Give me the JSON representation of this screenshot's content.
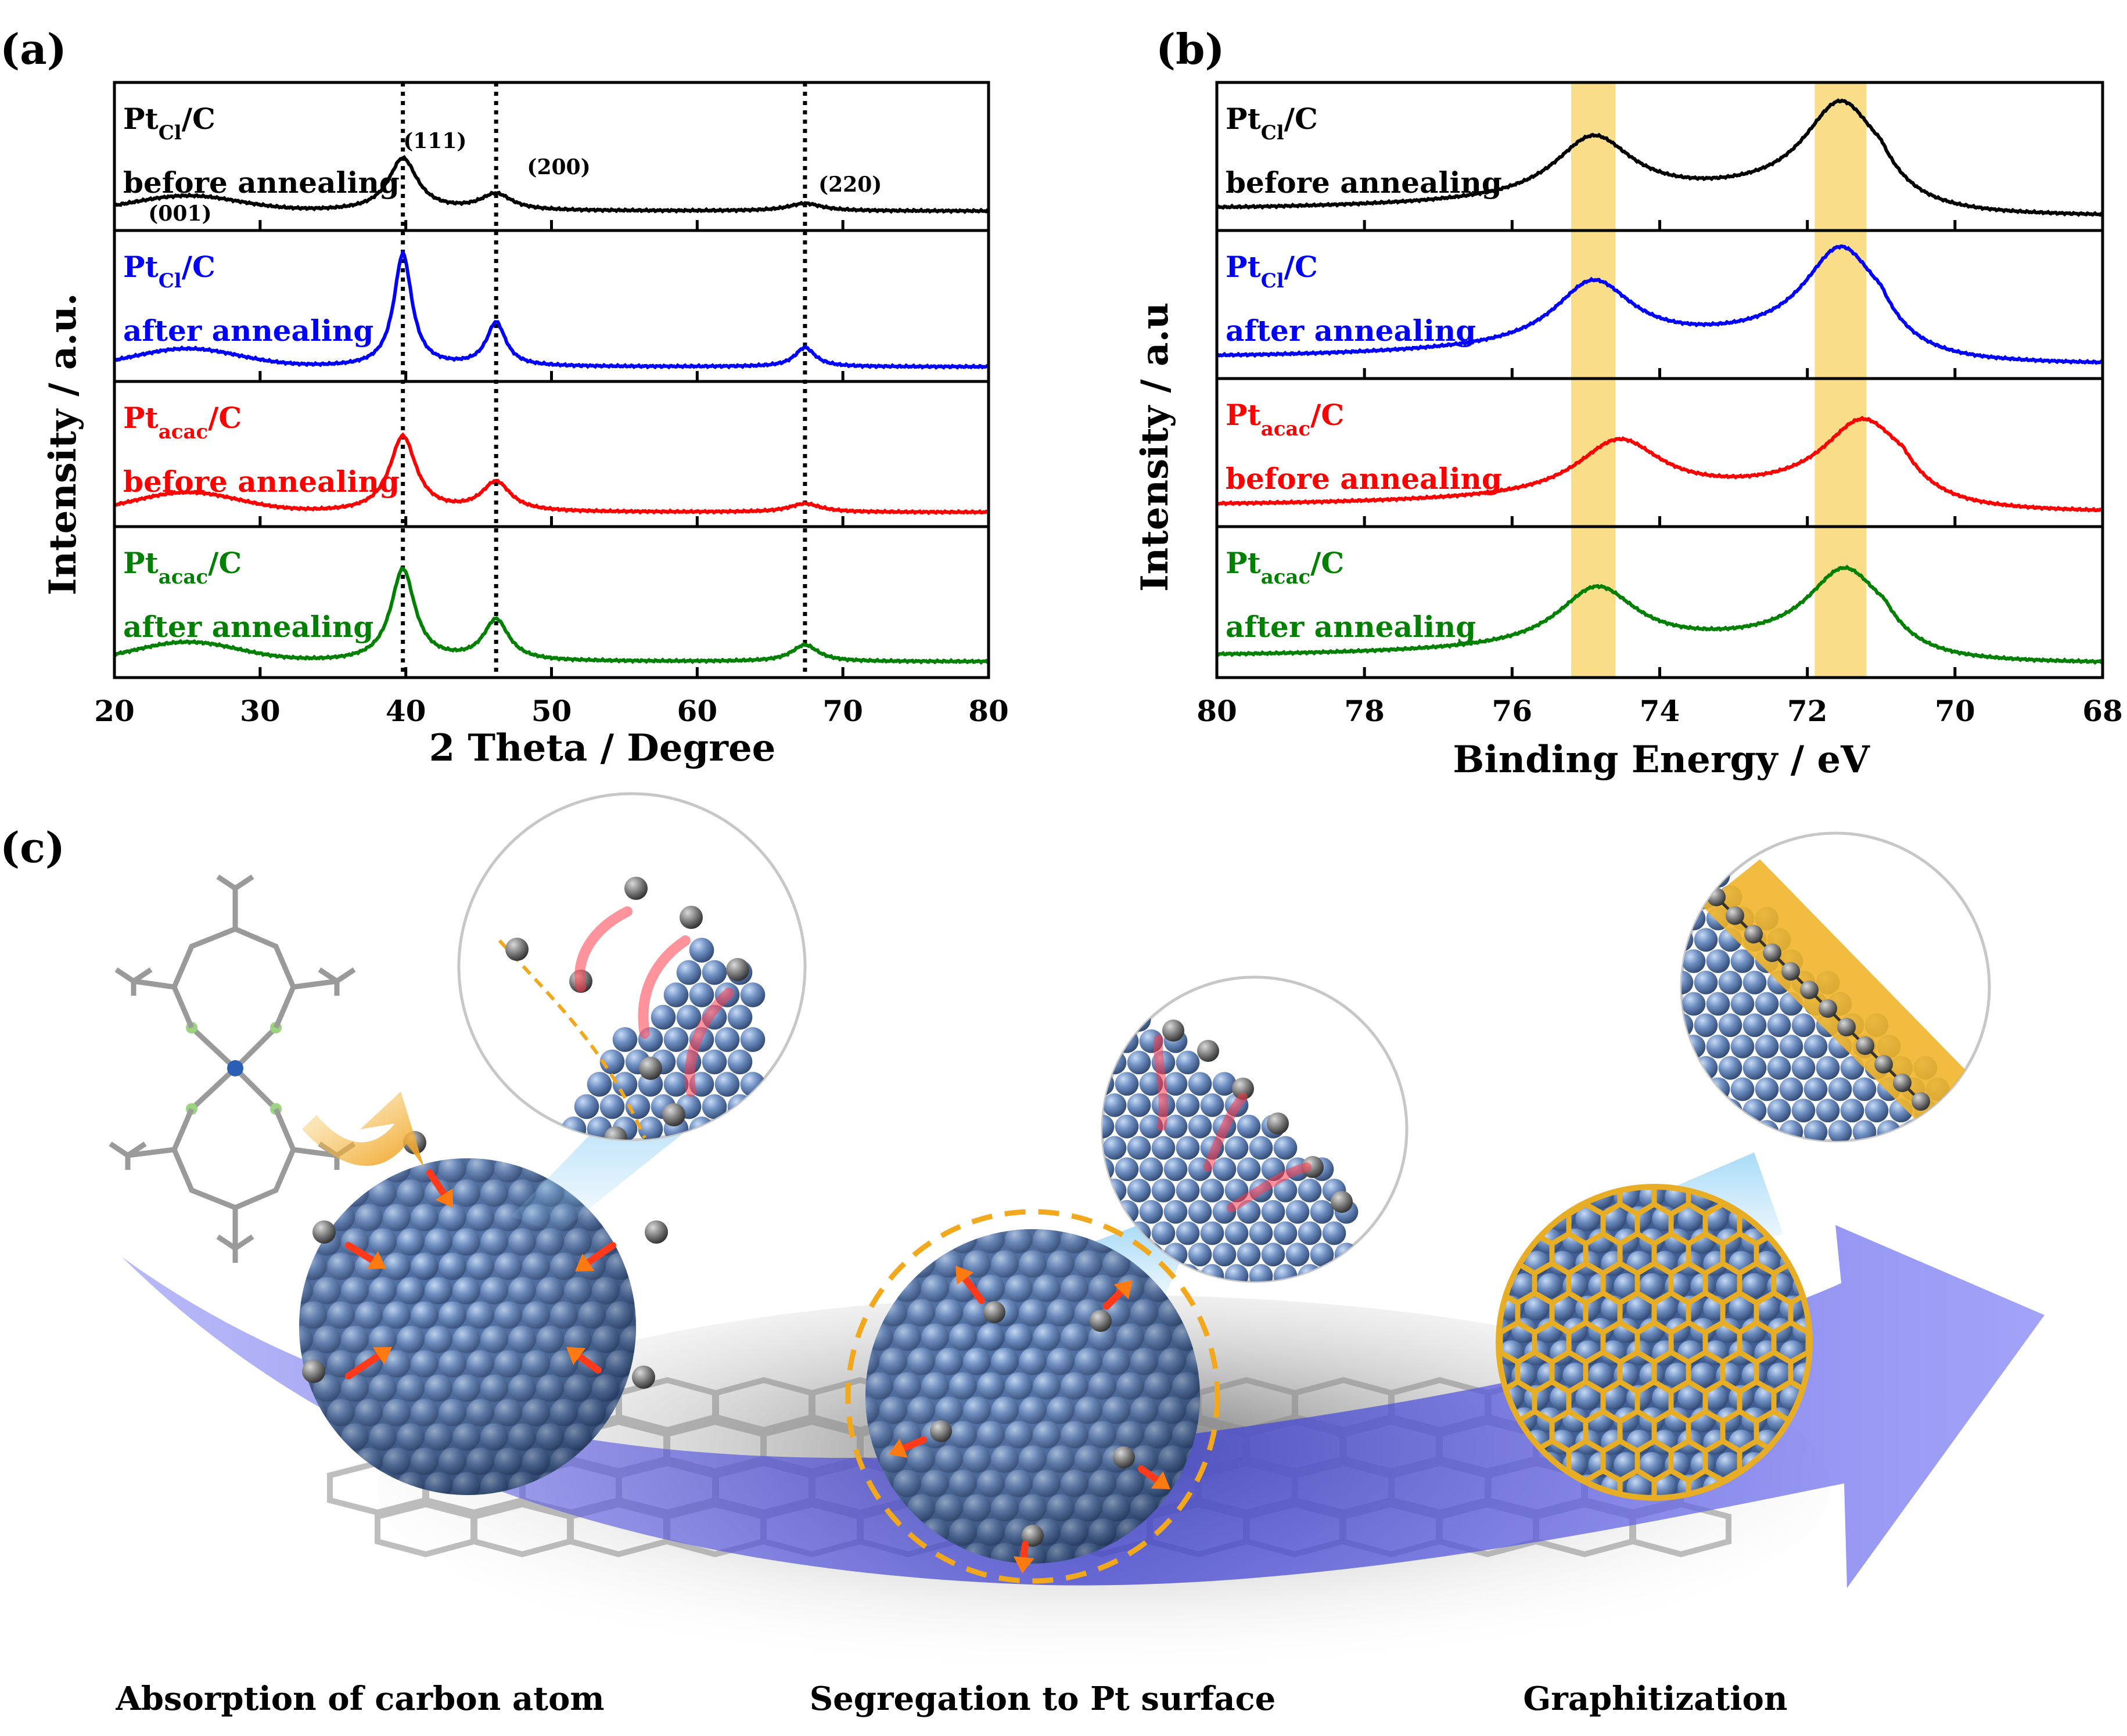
{
  "chart_data": [
    {
      "id": "a",
      "type": "line",
      "panel_label": "(a)",
      "xlabel": "2 Theta / Degree",
      "ylabel": "Intensity / a.u.",
      "xlim": [
        20,
        80
      ],
      "xticks": [
        20,
        30,
        40,
        50,
        60,
        70,
        80
      ],
      "reference_lines": [
        39.8,
        46.2,
        67.4
      ],
      "peak_labels": [
        {
          "text": "(001)",
          "x": 24.5
        },
        {
          "text": "(111)",
          "x": 39.8
        },
        {
          "text": "(200)",
          "x": 46.2
        },
        {
          "text": "(220)",
          "x": 67.4
        }
      ],
      "series": [
        {
          "name": "Pt_Cl/C before annealing",
          "label_main": "Pt",
          "label_sub": "Cl",
          "label_rest": "/C",
          "label_line2": "before annealing",
          "color": "#000000",
          "baseline": 0.1,
          "broad": {
            "center": 25,
            "width": 5,
            "height": 0.12
          },
          "peaks": [
            {
              "x": 39.8,
              "h": 0.42,
              "w": 1.2
            },
            {
              "x": 46.2,
              "h": 0.13,
              "w": 1.3
            },
            {
              "x": 67.4,
              "h": 0.06,
              "w": 1.4
            }
          ]
        },
        {
          "name": "Pt_Cl/C after annealing",
          "label_main": "Pt",
          "label_sub": "Cl",
          "label_rest": "/C",
          "label_line2": "after annealing",
          "color": "#0000ff",
          "baseline": 0.06,
          "broad": {
            "center": 25,
            "width": 5,
            "height": 0.14
          },
          "peaks": [
            {
              "x": 39.8,
              "h": 0.88,
              "w": 0.75
            },
            {
              "x": 46.2,
              "h": 0.34,
              "w": 0.8
            },
            {
              "x": 67.4,
              "h": 0.15,
              "w": 0.85
            }
          ]
        },
        {
          "name": "Pt_acac/C before annealing",
          "label_main": "Pt",
          "label_sub": "acac",
          "label_rest": "/C",
          "label_line2": "before annealing",
          "color": "#ff0000",
          "baseline": 0.06,
          "broad": {
            "center": 25,
            "width": 5,
            "height": 0.16
          },
          "peaks": [
            {
              "x": 39.8,
              "h": 0.62,
              "w": 1.1
            },
            {
              "x": 46.2,
              "h": 0.24,
              "w": 1.2
            },
            {
              "x": 67.4,
              "h": 0.07,
              "w": 1.3
            }
          ]
        },
        {
          "name": "Pt_acac/C after annealing",
          "label_main": "Pt",
          "label_sub": "acac",
          "label_rest": "/C",
          "label_line2": "after annealing",
          "color": "#008000",
          "baseline": 0.07,
          "broad": {
            "center": 25,
            "width": 5,
            "height": 0.15
          },
          "peaks": [
            {
              "x": 39.8,
              "h": 0.72,
              "w": 1.0
            },
            {
              "x": 46.2,
              "h": 0.32,
              "w": 1.05
            },
            {
              "x": 67.4,
              "h": 0.13,
              "w": 1.1
            }
          ]
        }
      ]
    },
    {
      "id": "b",
      "type": "line",
      "panel_label": "(b)",
      "xlabel": "Binding Energy / eV",
      "ylabel": "Intensity / a.u",
      "xlim": [
        80,
        68
      ],
      "xticks": [
        80,
        78,
        76,
        74,
        72,
        70,
        68
      ],
      "highlight_bands": [
        [
          75.2,
          74.6
        ],
        [
          71.9,
          71.2
        ]
      ],
      "highlight_color": "#f8d774",
      "series": [
        {
          "name": "Pt_Cl/C before annealing",
          "label_main": "Pt",
          "label_sub": "Cl",
          "label_rest": "/C",
          "label_line2": "before annealing",
          "color": "#000000",
          "peaks": [
            {
              "x": 74.9,
              "h": 0.5,
              "w": 0.65
            },
            {
              "x": 71.55,
              "h": 0.7,
              "w": 0.6
            }
          ],
          "background": {
            "start": 0.12,
            "peak": 0.28,
            "end": 0.05,
            "edge": 71.0
          }
        },
        {
          "name": "Pt_Cl/C after annealing",
          "label_main": "Pt",
          "label_sub": "Cl",
          "label_rest": "/C",
          "label_line2": "after annealing",
          "color": "#0000ff",
          "peaks": [
            {
              "x": 74.9,
              "h": 0.52,
              "w": 0.65
            },
            {
              "x": 71.55,
              "h": 0.7,
              "w": 0.6
            }
          ],
          "background": {
            "start": 0.12,
            "peak": 0.3,
            "end": 0.05,
            "edge": 71.0
          }
        },
        {
          "name": "Pt_acac/C before annealing",
          "label_main": "Pt",
          "label_sub": "acac",
          "label_rest": "/C",
          "label_line2": "before annealing",
          "color": "#ff0000",
          "peaks": [
            {
              "x": 74.55,
              "h": 0.45,
              "w": 0.7
            },
            {
              "x": 71.25,
              "h": 0.55,
              "w": 0.65
            }
          ],
          "background": {
            "start": 0.12,
            "peak": 0.25,
            "end": 0.05,
            "edge": 70.7
          }
        },
        {
          "name": "Pt_acac/C after annealing",
          "label_main": "Pt",
          "label_sub": "acac",
          "label_rest": "/C",
          "label_line2": "after annealing",
          "color": "#008000",
          "peaks": [
            {
              "x": 74.85,
              "h": 0.47,
              "w": 0.65
            },
            {
              "x": 71.5,
              "h": 0.55,
              "w": 0.6
            }
          ],
          "background": {
            "start": 0.12,
            "peak": 0.25,
            "end": 0.05,
            "edge": 70.95
          }
        }
      ]
    }
  ],
  "schematic": {
    "panel_label": "(c)",
    "steps": [
      "Absorption of carbon atom",
      "Segregation to Pt surface",
      "Graphitization"
    ],
    "colors": {
      "pt_atom": "#5f7fb0",
      "pt_atom_light": "#a9c3e8",
      "carbon_atom": "#6a6a6a",
      "arrow_band": "#6b6cf2",
      "graphite": "#e4a91e",
      "migration_arrow": "#ff3a1a"
    }
  }
}
